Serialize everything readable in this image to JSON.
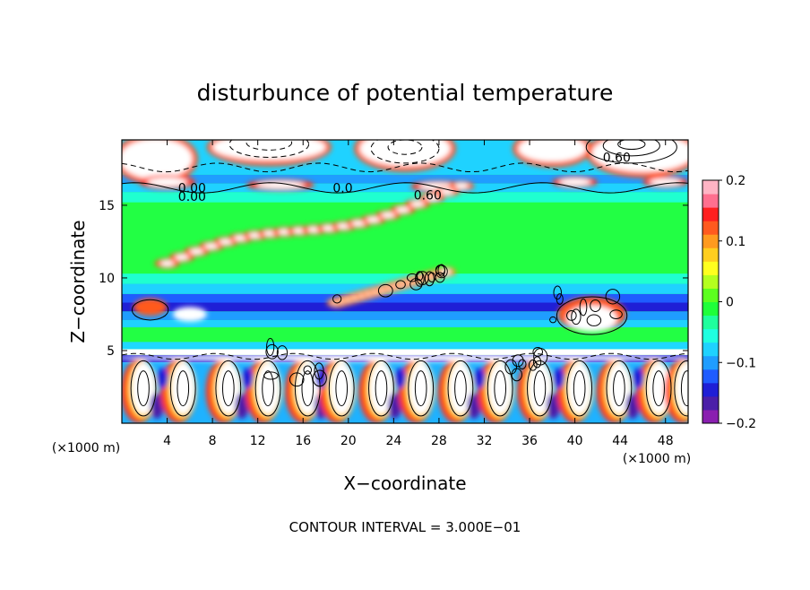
{
  "chart_data": {
    "type": "heatmap",
    "title": "disturbunce of potential temperature",
    "xlabel": "X−coordinate",
    "ylabel": "Z−coordinate",
    "x_unit": "(×1000 m)",
    "x_unit_right": "(×1000 m)",
    "xlim": [
      0,
      50
    ],
    "ylim": [
      0,
      19.5
    ],
    "x_ticks": [
      4,
      8,
      12,
      16,
      20,
      24,
      28,
      32,
      36,
      40,
      44,
      48
    ],
    "y_ticks": [
      5,
      10,
      15
    ],
    "colorbar": {
      "min": -0.2,
      "max": 0.2,
      "ticks": [
        {
          "value": 0.2,
          "label": "0.2"
        },
        {
          "value": 0.1,
          "label": "0.1"
        },
        {
          "value": 0,
          "label": "0"
        },
        {
          "value": -0.1,
          "label": "−0.1"
        },
        {
          "value": -0.2,
          "label": "−0.2"
        }
      ],
      "colors": [
        "#8a1fb0",
        "#4b1fa8",
        "#1f1fd6",
        "#1f5cff",
        "#1f9dff",
        "#1fd2ff",
        "#1fffe0",
        "#1fff9d",
        "#1fff3a",
        "#5cff1f",
        "#b4ff1f",
        "#ffff1f",
        "#ffce1f",
        "#ff9a1f",
        "#ff5a1f",
        "#ff1f1f",
        "#ff6f8f",
        "#ffb4c4"
      ]
    },
    "contour_labels": [
      {
        "x": 43.7,
        "z": 18.3,
        "text": "0.60"
      },
      {
        "x": 6.2,
        "z": 16.2,
        "text": "0.00"
      },
      {
        "x": 6.2,
        "z": 15.6,
        "text": "0.00"
      },
      {
        "x": 19.5,
        "z": 16.2,
        "text": "0.0"
      },
      {
        "x": 27.0,
        "z": 15.7,
        "text": "0.60"
      }
    ],
    "footnote": "CONTOUR INTERVAL = 3.000E−01"
  }
}
